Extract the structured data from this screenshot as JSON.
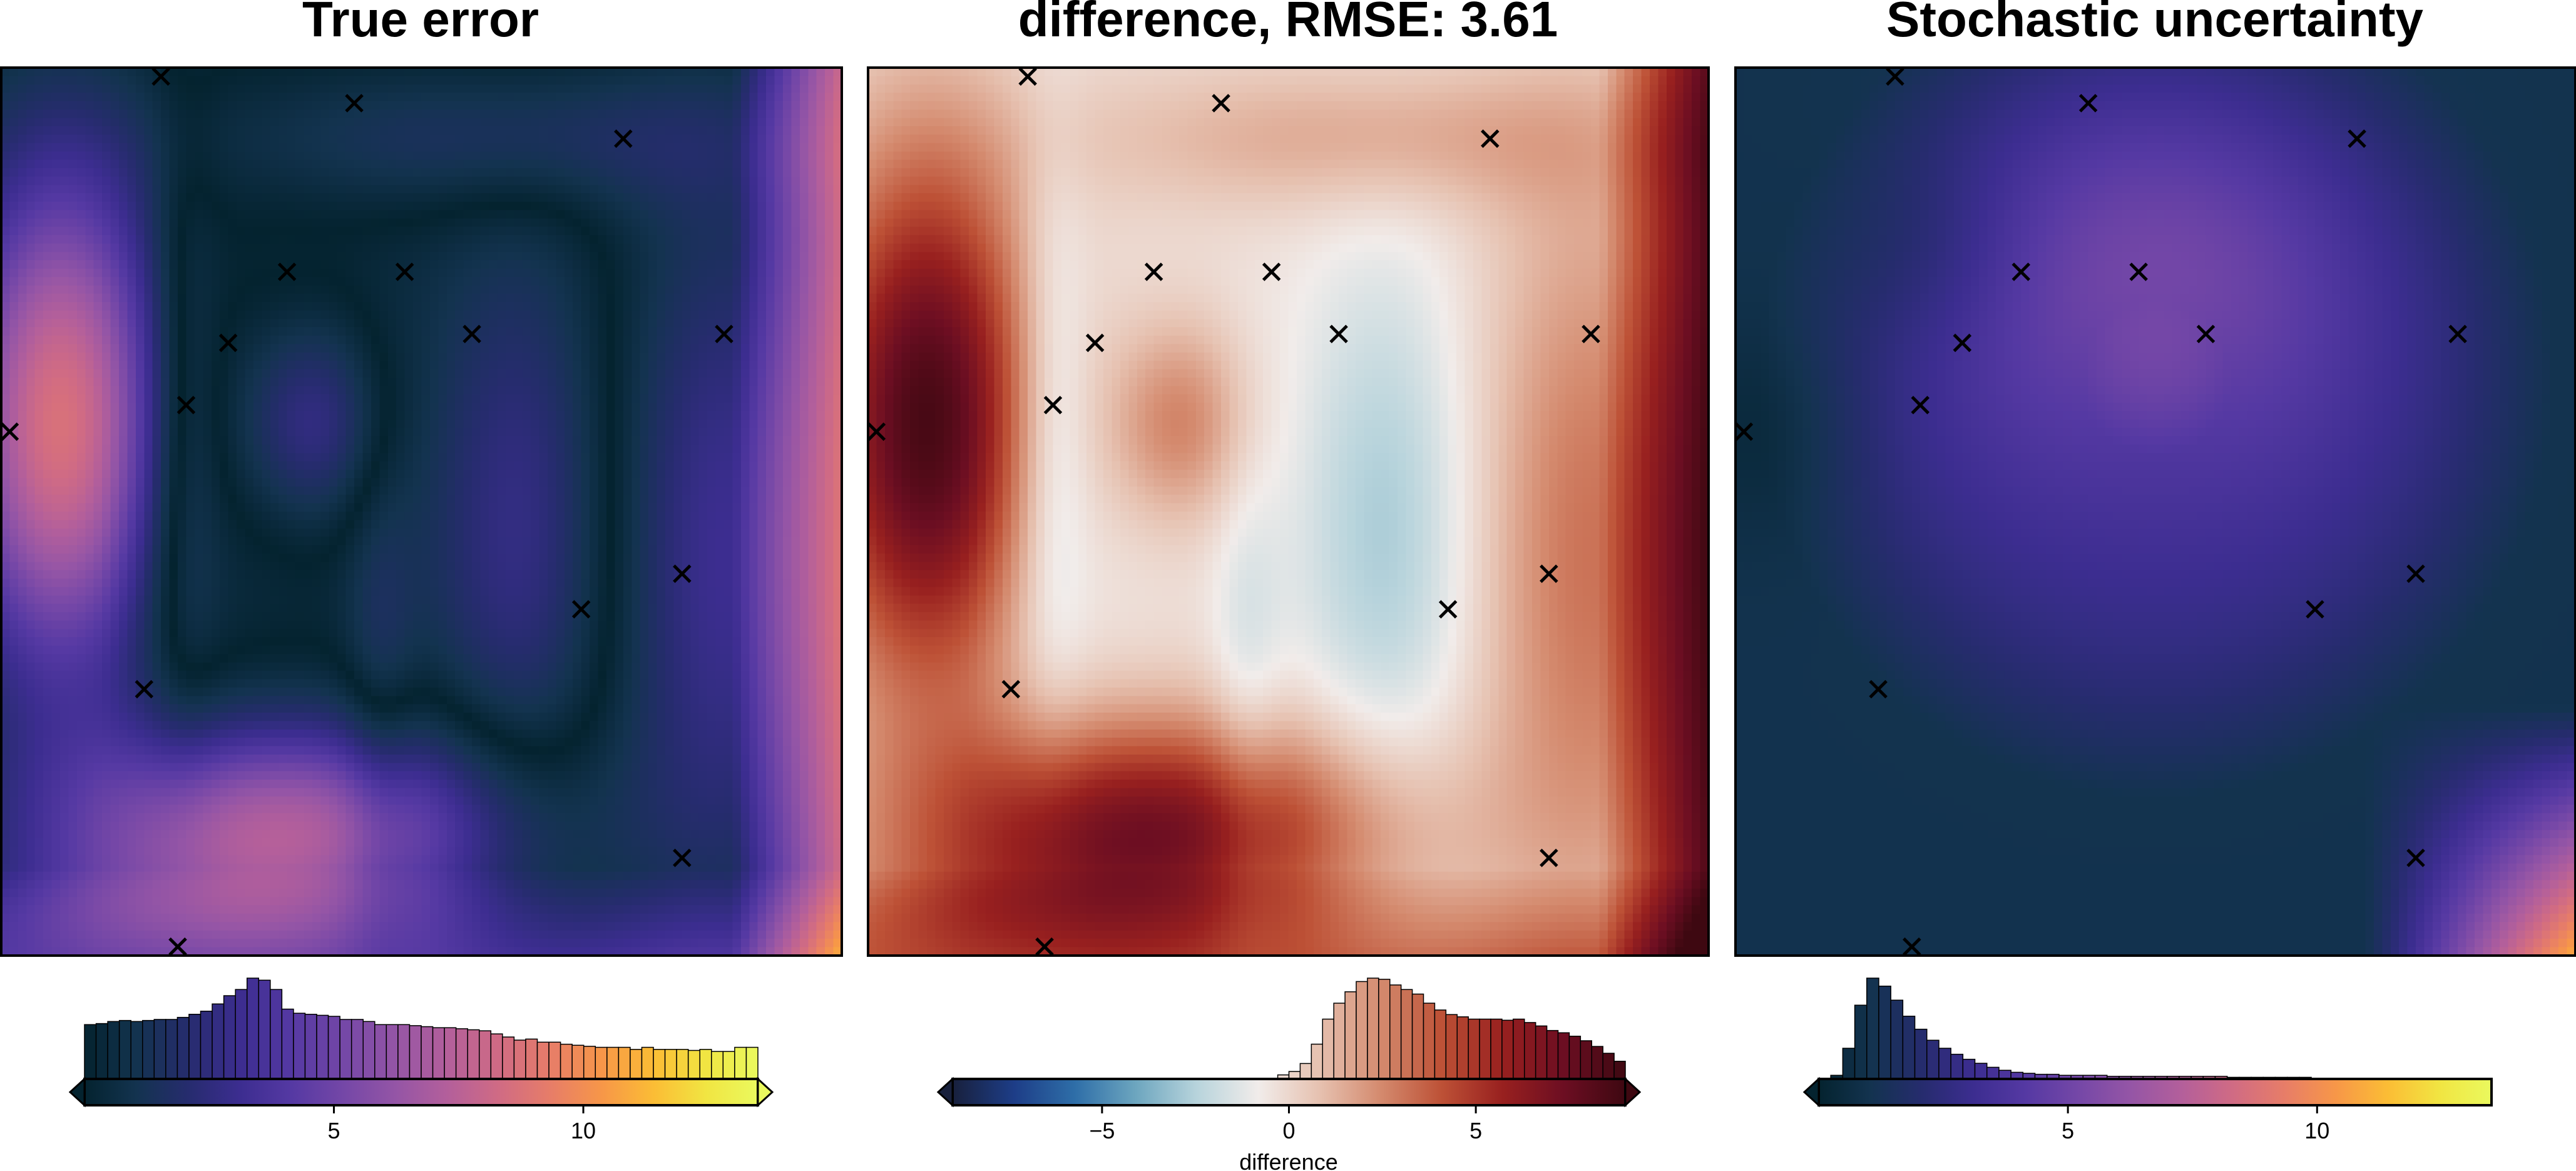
{
  "chart_data": [
    {
      "type": "heatmap",
      "title": "True error",
      "colormap": "thermal",
      "colorbar": {
        "range": [
          0,
          13.5
        ],
        "ticks": [
          5,
          10
        ],
        "extend": "both",
        "label": ""
      },
      "histogram": [
        52,
        53,
        55,
        56,
        55,
        56,
        57,
        57,
        59,
        62,
        65,
        72,
        80,
        86,
        97,
        95,
        86,
        67,
        63,
        62,
        61,
        60,
        57,
        57,
        55,
        52,
        52,
        52,
        51,
        50,
        49,
        49,
        48,
        47,
        46,
        43,
        40,
        37,
        38,
        35,
        35,
        33,
        32,
        31,
        30,
        30,
        30,
        28,
        30,
        28,
        28,
        28,
        27,
        28,
        26,
        26,
        30,
        30
      ]
    },
    {
      "type": "heatmap",
      "title": "difference, RMSE: 3.61",
      "colormap": "balance",
      "colorbar": {
        "range": [
          -9,
          9
        ],
        "ticks": [
          -5,
          0,
          5
        ],
        "extend": "both",
        "label": "difference"
      },
      "histogram": [
        0,
        0,
        0,
        0,
        0,
        0,
        0,
        0,
        0,
        0,
        0,
        0,
        0,
        0,
        0,
        0,
        0,
        0,
        0,
        0,
        0,
        0,
        0,
        0,
        0,
        0,
        0,
        0,
        0,
        3,
        6,
        13,
        30,
        52,
        66,
        76,
        85,
        88,
        87,
        82,
        78,
        74,
        66,
        60,
        56,
        54,
        52,
        52,
        52,
        51,
        52,
        49,
        46,
        42,
        40,
        37,
        33,
        28,
        22,
        15
      ]
    },
    {
      "type": "heatmap",
      "title": "Stochastic uncertainty",
      "colormap": "thermal",
      "colorbar": {
        "range": [
          0,
          13.5
        ],
        "ticks": [
          5,
          10
        ],
        "extend": "min",
        "label": ""
      },
      "histogram": [
        0,
        3,
        30,
        73,
        100,
        92,
        78,
        62,
        49,
        38,
        30,
        24,
        19,
        15,
        11,
        8,
        6,
        5,
        4,
        4,
        3,
        3,
        3,
        3,
        2,
        2,
        2,
        2,
        2,
        2,
        2,
        2,
        2,
        2,
        1,
        1,
        1,
        1,
        1,
        1,
        1,
        0,
        0,
        0,
        0,
        0,
        0,
        0,
        0,
        0,
        0,
        0,
        0,
        0,
        0,
        0
      ]
    }
  ],
  "constraint_points": [
    [
      0.19,
      0.01
    ],
    [
      0.42,
      0.04
    ],
    [
      0.74,
      0.08
    ],
    [
      0.34,
      0.23
    ],
    [
      0.48,
      0.23
    ],
    [
      0.27,
      0.31
    ],
    [
      0.56,
      0.3
    ],
    [
      0.86,
      0.3
    ],
    [
      0.22,
      0.38
    ],
    [
      0.01,
      0.41
    ],
    [
      0.81,
      0.57
    ],
    [
      0.69,
      0.61
    ],
    [
      0.17,
      0.7
    ],
    [
      0.81,
      0.89
    ],
    [
      0.21,
      0.99
    ]
  ],
  "colors": {
    "frame": "#000000",
    "thermal": [
      "#04232f",
      "#13334f",
      "#262c6e",
      "#3c2d90",
      "#5539a3",
      "#7447a7",
      "#9455a6",
      "#b35f9b",
      "#d06b84",
      "#e77d68",
      "#f79748",
      "#fbbd35",
      "#f1e542",
      "#eaf95e"
    ],
    "balance": [
      "#18203c",
      "#1d3d87",
      "#2e6ea8",
      "#6da6bf",
      "#b8d4dc",
      "#f1ecea",
      "#e6c1b0",
      "#d48a6e",
      "#bd5136",
      "#98201f",
      "#6c0e22",
      "#3e0811"
    ]
  }
}
